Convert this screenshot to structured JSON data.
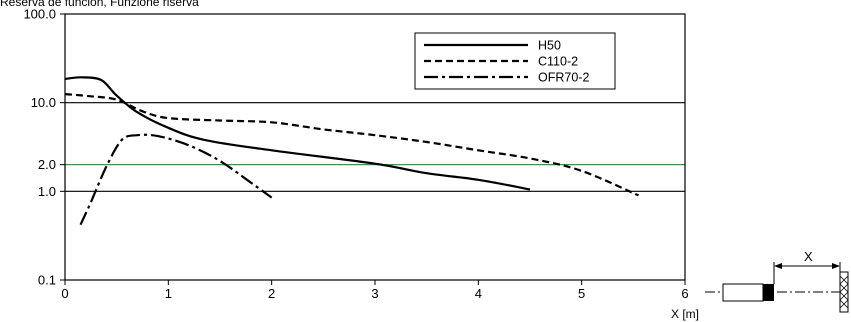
{
  "chart_data": {
    "type": "line",
    "title": "Reserva de función, Funzione riserva",
    "xlabel": "X [m]",
    "ylabel": "",
    "x_scale": "linear",
    "y_scale": "log",
    "xlim": [
      0,
      6
    ],
    "ylim": [
      0.1,
      100
    ],
    "x_ticks": [
      "0",
      "1",
      "2",
      "3",
      "4",
      "5",
      "6"
    ],
    "y_ticks": [
      {
        "value": 0.1,
        "label": "0.1"
      },
      {
        "value": 1.0,
        "label": "1.0"
      },
      {
        "value": 2.0,
        "label": "2.0"
      },
      {
        "value": 10.0,
        "label": "10.0"
      },
      {
        "value": 100.0,
        "label": "100.0"
      }
    ],
    "reference_lines": [
      {
        "value": 1.0,
        "color": "#000000"
      },
      {
        "value": 2.0,
        "color": "#2a9d4a"
      },
      {
        "value": 10.0,
        "color": "#000000"
      }
    ],
    "legend_position": "top-right",
    "series": [
      {
        "name": "H50",
        "style": "solid",
        "x": [
          0.0,
          0.15,
          0.35,
          0.5,
          0.7,
          1.0,
          1.35,
          2.0,
          3.0,
          3.5,
          4.0,
          4.5
        ],
        "y": [
          18.5,
          19.3,
          18.0,
          12.0,
          7.8,
          5.2,
          3.8,
          2.9,
          2.05,
          1.6,
          1.35,
          1.05
        ]
      },
      {
        "name": "C110-2",
        "style": "dashed",
        "x": [
          0.0,
          0.25,
          0.5,
          0.75,
          1.0,
          1.5,
          2.0,
          2.5,
          3.0,
          3.5,
          4.0,
          4.5,
          5.0,
          5.55
        ],
        "y": [
          12.5,
          11.8,
          10.8,
          8.0,
          6.7,
          6.3,
          6.0,
          5.0,
          4.3,
          3.6,
          2.9,
          2.35,
          1.7,
          0.9
        ]
      },
      {
        "name": "OFR70-2",
        "style": "dash-dot",
        "x": [
          0.15,
          0.25,
          0.4,
          0.55,
          0.7,
          0.9,
          1.2,
          1.5,
          1.8,
          2.0
        ],
        "y": [
          0.42,
          0.75,
          1.9,
          3.8,
          4.3,
          4.2,
          3.3,
          2.2,
          1.25,
          0.85
        ]
      }
    ]
  },
  "diagram": {
    "label": "X"
  }
}
